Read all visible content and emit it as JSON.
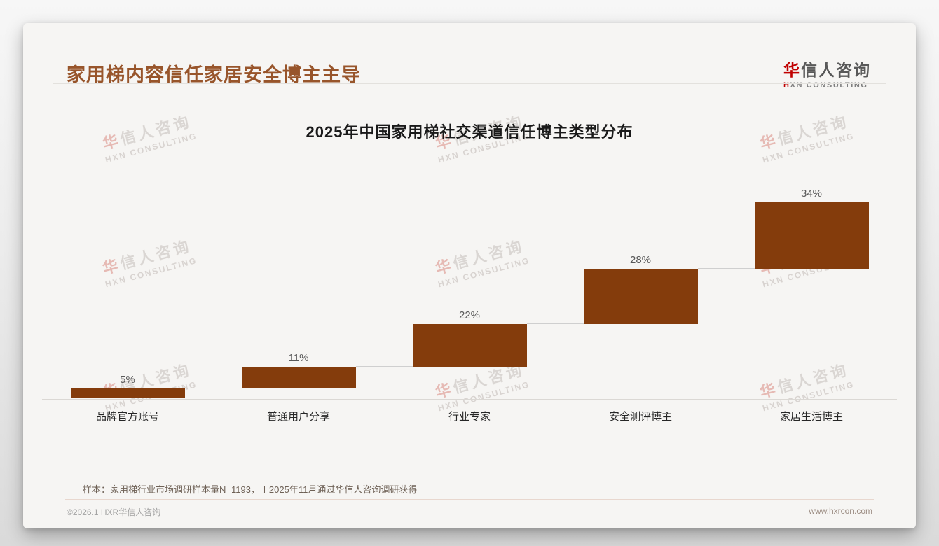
{
  "page": {
    "title": "家用梯内容信任家居安全博主主导",
    "footnote": "样本：家用梯行业市场调研样本量N=1193，于2025年11月通过华信人咨询调研获得",
    "footer_left": "©2026.1 HXR华信人咨询",
    "footer_right": "www.hxrcon.com"
  },
  "logo": {
    "zh_accent": "华",
    "zh_rest": "信人咨询",
    "en_accent": "H",
    "en_rest": "XN CONSULTING"
  },
  "watermark": {
    "zh_accent": "华",
    "zh_rest": "信人咨询",
    "en": "HXN CONSULTING"
  },
  "colors": {
    "page_title_brown": "#98552B",
    "bar_brown": "#843C0C",
    "brand_red": "#C00000",
    "value_label_gray": "#595959",
    "connector_gray": "#CFCFCF"
  },
  "chart_data": {
    "type": "bar",
    "subtype": "waterfall-steps",
    "title": "2025年中国家用梯社交渠道信任博主类型分布",
    "categories": [
      "品牌官方账号",
      "普通用户分享",
      "行业专家",
      "安全测评博主",
      "家居生活博主"
    ],
    "values": [
      5,
      11,
      22,
      28,
      34
    ],
    "cumulative_start": [
      0,
      5,
      16,
      38,
      66
    ],
    "value_labels": [
      "5%",
      "11%",
      "22%",
      "28%",
      "34%"
    ],
    "unit": "%",
    "ylim": [
      0,
      100
    ],
    "grid": false,
    "legend": false,
    "bar_color": "#843C0C",
    "connector_color": "#CFCFCF",
    "baseline_color": "#DBD8D4"
  }
}
